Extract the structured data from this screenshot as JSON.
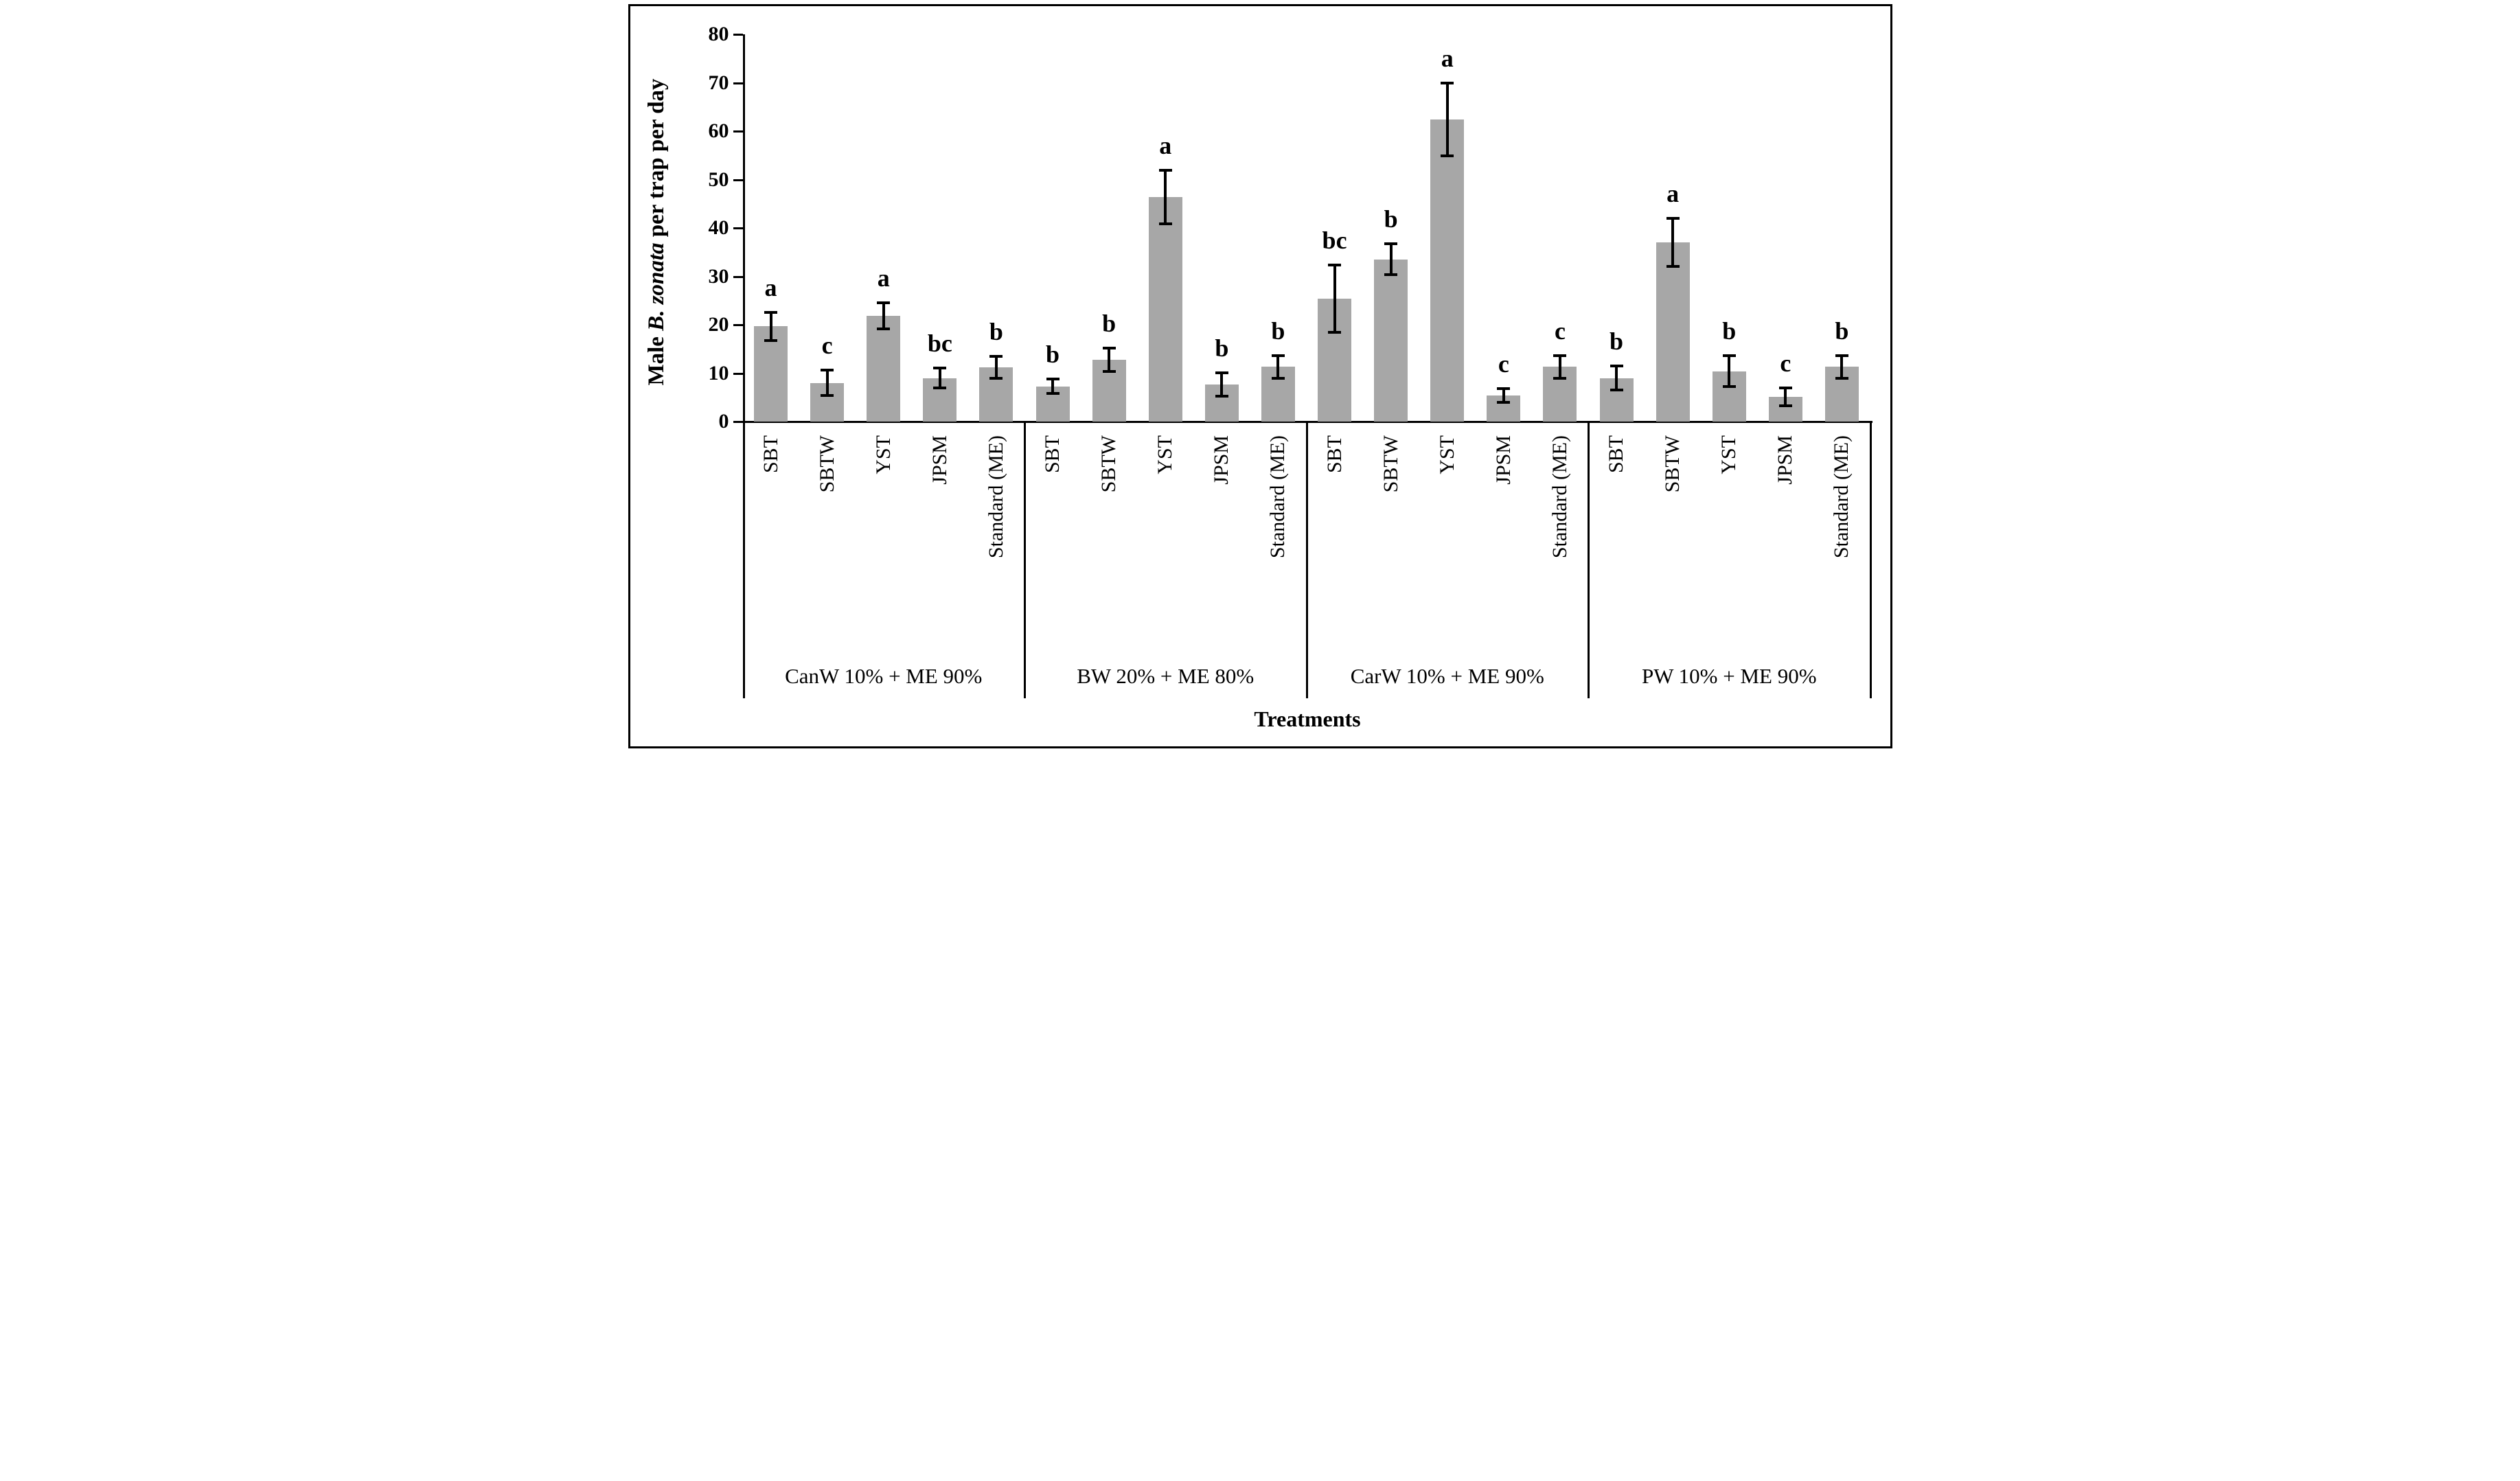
{
  "chart_data": {
    "type": "bar",
    "title": "",
    "ylabel_parts": {
      "prefix": "Male ",
      "italic": "B. zonata",
      "suffix": " per trap per day"
    },
    "xlabel": "Treatments",
    "ylim": [
      0,
      80
    ],
    "ytick_step": 10,
    "yticks": [
      0,
      10,
      20,
      30,
      40,
      50,
      60,
      70,
      80
    ],
    "grid": "off",
    "legend": "none",
    "bar_color": "#a7a7a7",
    "error_bar_color": "#000000",
    "categories": [
      "SBT",
      "SBTW",
      "YST",
      "JPSM",
      "Standard (ME)"
    ],
    "groups": [
      {
        "label": "CanW 10% + ME 90%",
        "bars": [
          {
            "trap": "SBT",
            "value": 19.7,
            "error": 3.2,
            "letter": "a"
          },
          {
            "trap": "SBTW",
            "value": 8.0,
            "error": 2.9,
            "letter": "c"
          },
          {
            "trap": "YST",
            "value": 21.8,
            "error": 3.0,
            "letter": "a"
          },
          {
            "trap": "JPSM",
            "value": 9.0,
            "error": 2.4,
            "letter": "bc"
          },
          {
            "trap": "Standard (ME)",
            "value": 11.2,
            "error": 2.6,
            "letter": "b"
          }
        ]
      },
      {
        "label": "BW 20% + ME 80%",
        "bars": [
          {
            "trap": "SBT",
            "value": 7.3,
            "error": 1.8,
            "letter": "b"
          },
          {
            "trap": "SBTW",
            "value": 12.8,
            "error": 2.7,
            "letter": "b"
          },
          {
            "trap": "YST",
            "value": 46.4,
            "error": 5.8,
            "letter": "a"
          },
          {
            "trap": "JPSM",
            "value": 7.6,
            "error": 2.7,
            "letter": "b"
          },
          {
            "trap": "Standard (ME)",
            "value": 11.3,
            "error": 2.6,
            "letter": "b"
          }
        ]
      },
      {
        "label": "CarW 10% + ME 90%",
        "bars": [
          {
            "trap": "SBT",
            "value": 25.4,
            "error": 7.2,
            "letter": "bc"
          },
          {
            "trap": "SBTW",
            "value": 33.5,
            "error": 3.5,
            "letter": "b"
          },
          {
            "trap": "YST",
            "value": 62.4,
            "error": 7.8,
            "letter": "a"
          },
          {
            "trap": "JPSM",
            "value": 5.4,
            "error": 1.7,
            "letter": "c"
          },
          {
            "trap": "Standard (ME)",
            "value": 11.3,
            "error": 2.6,
            "letter": "c"
          }
        ]
      },
      {
        "label": "PW 10% + ME 90%",
        "bars": [
          {
            "trap": "SBT",
            "value": 9.0,
            "error": 2.8,
            "letter": "b"
          },
          {
            "trap": "SBTW",
            "value": 37.0,
            "error": 5.2,
            "letter": "a"
          },
          {
            "trap": "YST",
            "value": 10.4,
            "error": 3.5,
            "letter": "b"
          },
          {
            "trap": "JPSM",
            "value": 5.1,
            "error": 2.1,
            "letter": "c"
          },
          {
            "trap": "Standard (ME)",
            "value": 11.3,
            "error": 2.6,
            "letter": "b"
          }
        ]
      }
    ]
  }
}
